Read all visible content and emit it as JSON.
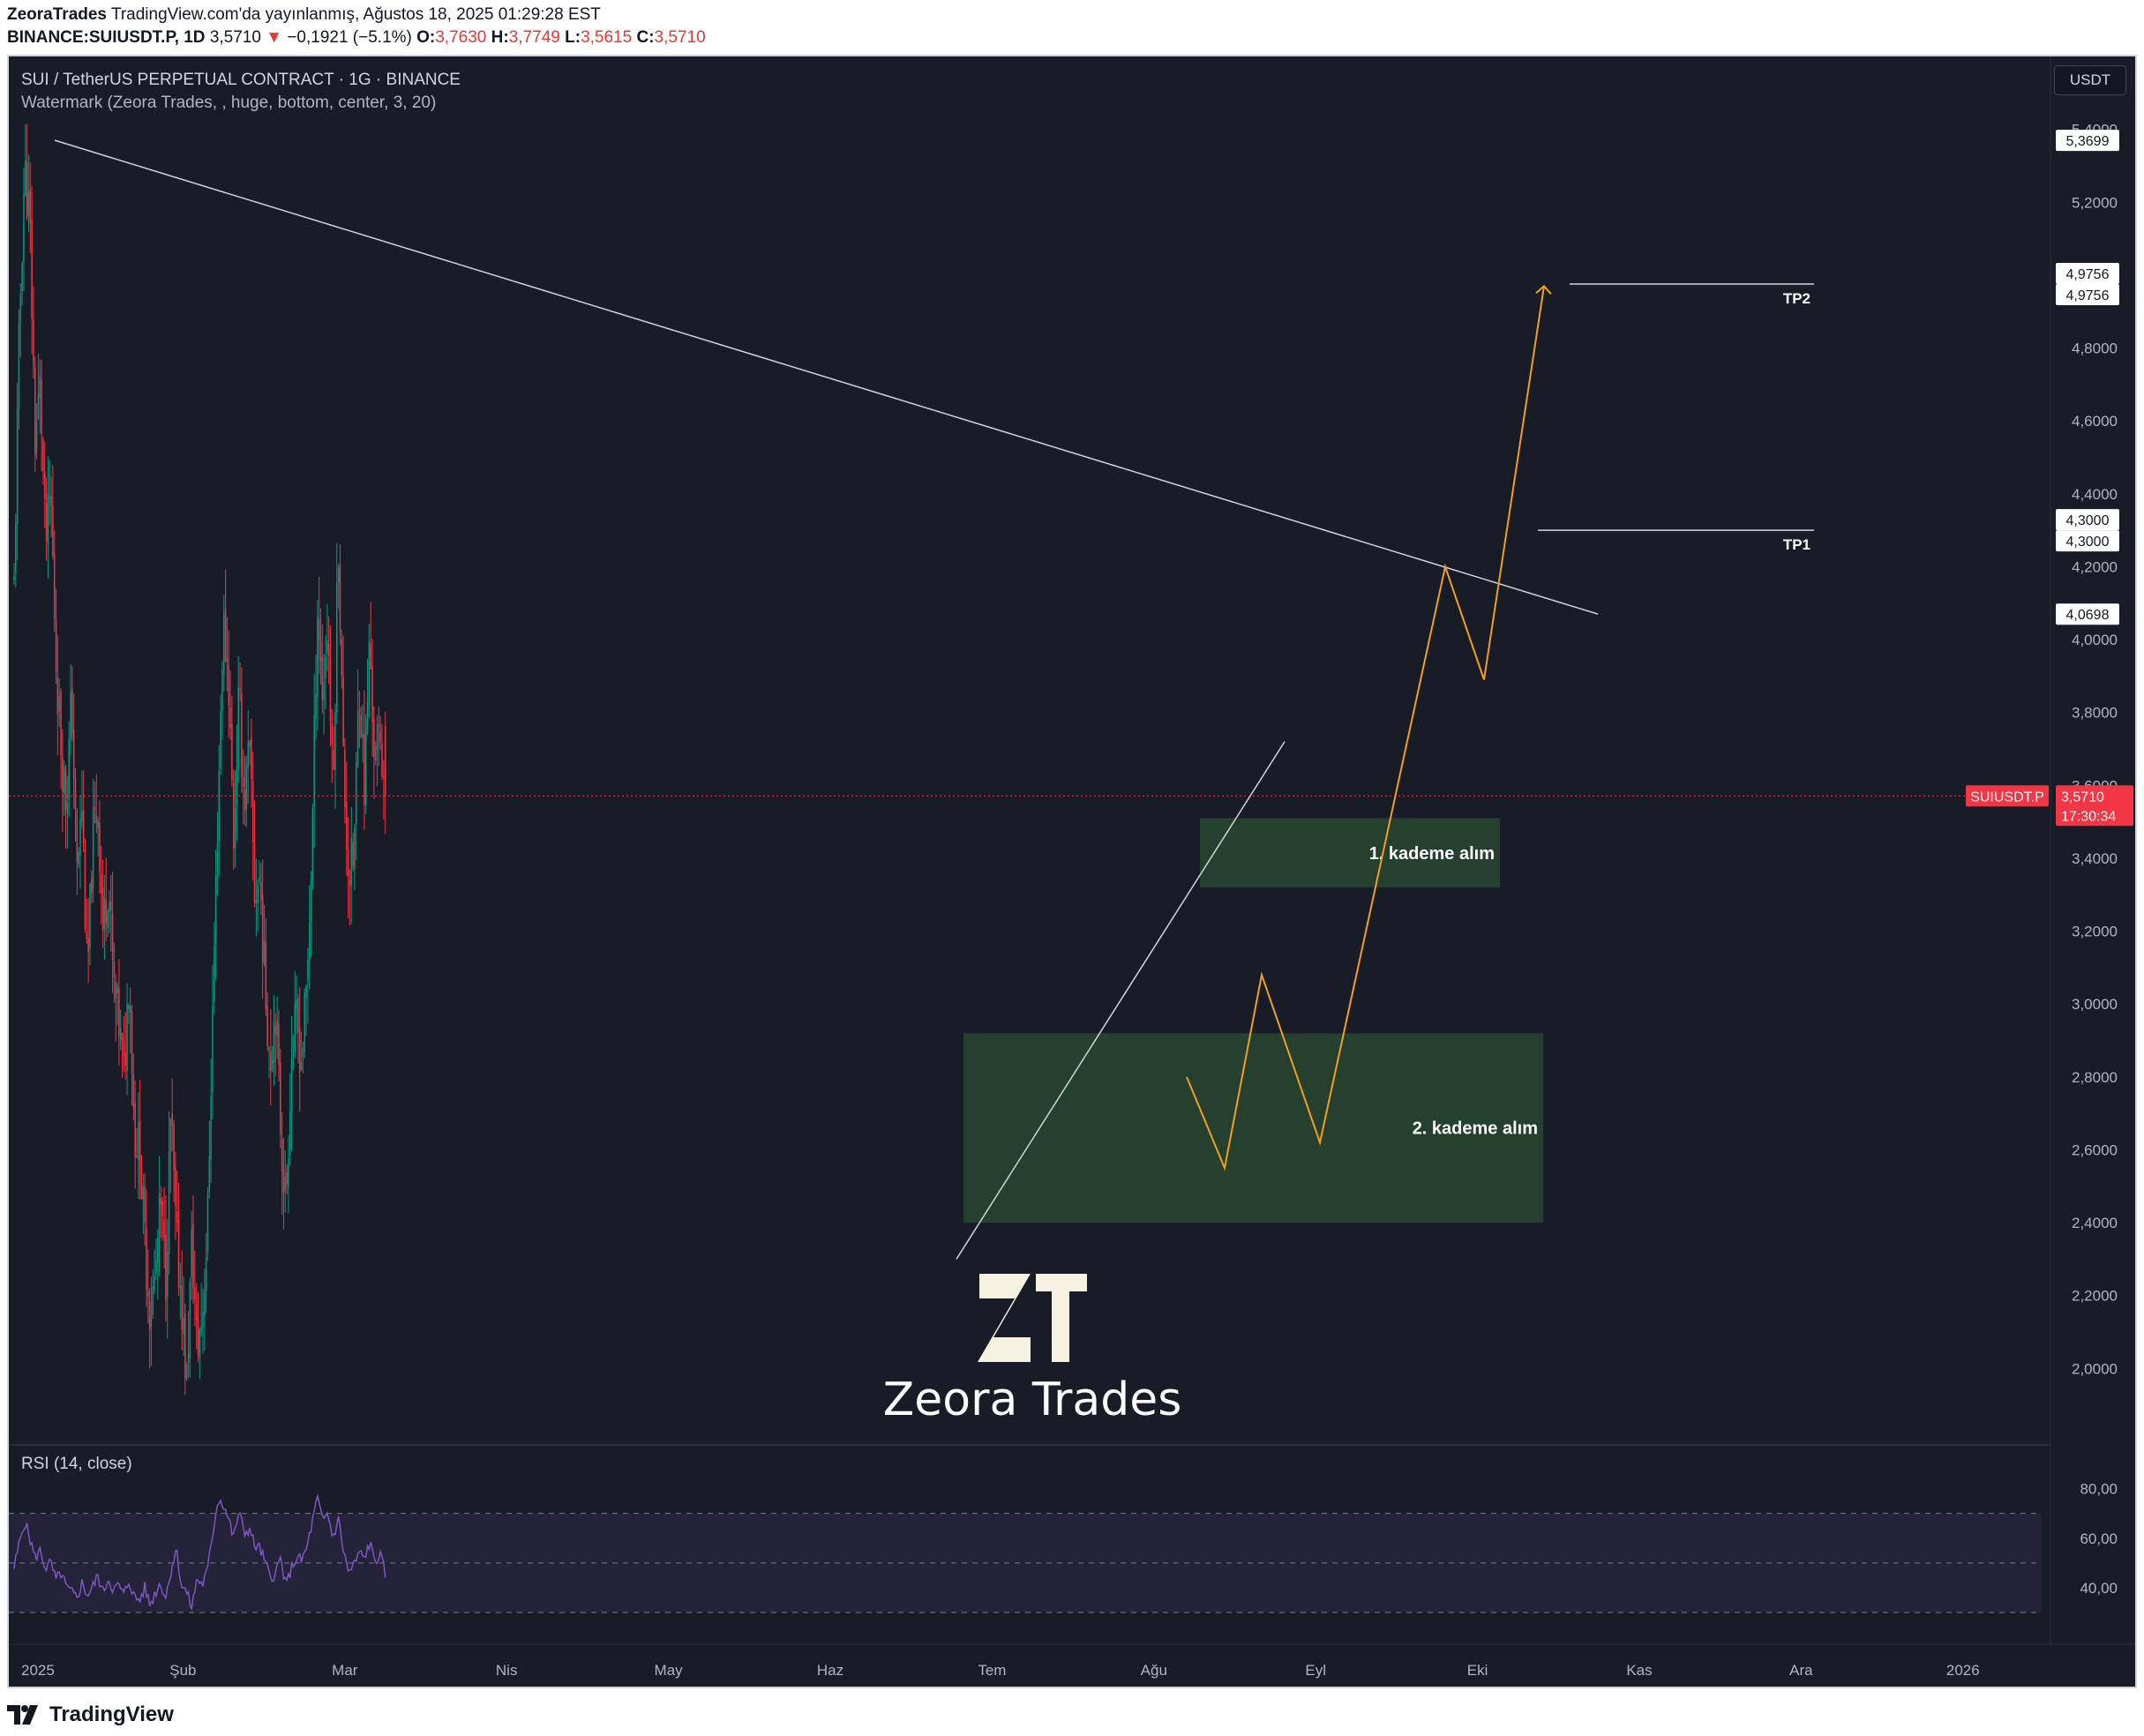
{
  "header": {
    "publisher": "ZeoraTrades",
    "published_text": "TradingView.com'da yayınlanmış, Ağustos 18, 2025 01:29:28 EST",
    "symbol_line": "BINANCE:SUIUSDT.P, 1D",
    "last": "3,5710",
    "change_arrow": "▼",
    "change": "−0,1921 (−5.1%)",
    "o_label": "O:",
    "o": "3,7630",
    "h_label": "H:",
    "h": "3,7749",
    "l_label": "L:",
    "l": "3,5615",
    "c_label": "C:",
    "c": "3,5710"
  },
  "legend": {
    "title": "SUI / TetherUS PERPETUAL CONTRACT · 1G · BINANCE",
    "indicator": "Watermark (Zeora Trades, , huge, bottom, center, 3, 20)",
    "rsi": "RSI (14, close)"
  },
  "currency_button": "USDT",
  "watermark": {
    "text": "Zeora Trades",
    "logo_glyph": "ZT"
  },
  "footer": {
    "brand": "TradingView"
  },
  "colors": {
    "background": "#181c27",
    "up": "#089981",
    "down": "#f23645",
    "projection": "#f0a020",
    "zone": "#2b4a33",
    "rsi": "#7e57c2",
    "price_tag": "#f23645"
  },
  "chart_data": {
    "type": "candlestick",
    "title": "SUI / TetherUS PERPETUAL CONTRACT · 1G · BINANCE",
    "ylim": [
      1.8,
      5.6
    ],
    "y_ticks": [
      "2,0000",
      "2,2000",
      "2,4000",
      "2,6000",
      "2,8000",
      "3,0000",
      "3,2000",
      "3,4000",
      "3,6000",
      "3,8000",
      "4,0000",
      "4,2000",
      "4,4000",
      "4,6000",
      "4,8000",
      "5,0000",
      "5,2000",
      "5,4000"
    ],
    "x_ticks": [
      "2025",
      "Şub",
      "Mar",
      "Nis",
      "May",
      "Haz",
      "Tem",
      "Ağu",
      "Eyl",
      "Eki",
      "Kas",
      "Ara",
      "2026"
    ],
    "price_labels": [
      "5,3699",
      "4,9756",
      "4,9756",
      "4,3000",
      "4,3000",
      "4,0698"
    ],
    "current_price": {
      "symbol": "SUIUSDT.P",
      "price": "3,5710",
      "countdown": "17:30:34"
    },
    "series_path": [
      4.15,
      4.85,
      5.3,
      5.15,
      4.55,
      4.7,
      4.25,
      4.4,
      3.95,
      3.7,
      3.55,
      3.85,
      3.35,
      3.55,
      3.05,
      3.45,
      3.55,
      3.2,
      3.35,
      3.05,
      2.95,
      2.8,
      3.1,
      2.65,
      2.6,
      2.35,
      2.15,
      2.25,
      2.45,
      2.25,
      2.7,
      2.35,
      2.2,
      1.95,
      2.35,
      2.05,
      2.15,
      2.4,
      3.0,
      3.55,
      4.05,
      3.9,
      3.45,
      3.85,
      3.55,
      3.7,
      3.3,
      3.35,
      3.05,
      2.85,
      3.0,
      2.65,
      2.45,
      2.85,
      2.95,
      2.85,
      3.05,
      3.45,
      4.1,
      3.85,
      4.05,
      3.55,
      4.3,
      3.65,
      3.35,
      3.4,
      3.9,
      3.6,
      4.0,
      3.65,
      3.76,
      3.571
    ],
    "annotations": [
      {
        "label": "1. kademe alım",
        "type": "zone",
        "y_range": [
          3.32,
          3.51
        ]
      },
      {
        "label": "2. kademe alım",
        "type": "zone",
        "y_range": [
          2.4,
          2.92
        ]
      },
      {
        "label": "TP1",
        "type": "level",
        "price": 4.3
      },
      {
        "label": "TP2",
        "type": "level",
        "price": 4.9756
      }
    ],
    "rsi": {
      "ylim": [
        25,
        82
      ],
      "y_ticks": [
        "40,00",
        "60,00",
        "80,00"
      ],
      "bands": [
        30,
        50,
        70
      ],
      "values": [
        48,
        58,
        67,
        60,
        52,
        55,
        48,
        50,
        43,
        46,
        40,
        38,
        36,
        42,
        37,
        40,
        45,
        38,
        44,
        39,
        41,
        37,
        43,
        36,
        35,
        40,
        33,
        38,
        42,
        36,
        47,
        56,
        41,
        38,
        32,
        44,
        41,
        47,
        62,
        76,
        74,
        68,
        60,
        71,
        62,
        64,
        57,
        56,
        50,
        44,
        46,
        52,
        40,
        48,
        52,
        51,
        56,
        66,
        76,
        67,
        70,
        60,
        68,
        55,
        46,
        49,
        54,
        52,
        58,
        51,
        53,
        46
      ]
    }
  }
}
